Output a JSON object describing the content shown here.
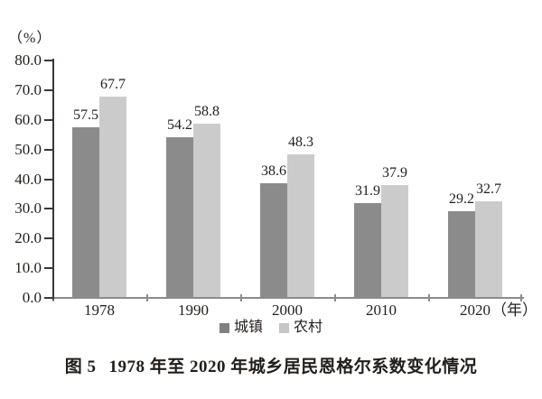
{
  "chart_data": {
    "type": "bar",
    "title": "图5 1978年至2020年城乡居民恩格尔系数变化情况",
    "categories": [
      "1978",
      "1990",
      "2000",
      "2010",
      "2020"
    ],
    "series": [
      {
        "name": "城镇",
        "color": "#8b8b8b",
        "legend_color": "#818181",
        "values": [
          57.5,
          54.2,
          38.6,
          31.9,
          29.2
        ]
      },
      {
        "name": "农村",
        "color": "#cbcbcb",
        "legend_color": "#c6c6c6",
        "values": [
          67.7,
          58.8,
          48.3,
          37.9,
          32.7
        ]
      }
    ],
    "ylabel": "（%）",
    "xlabel": "",
    "x_unit_label": "（年）",
    "ylim": [
      0,
      80
    ],
    "ytick_step": 10,
    "ytick_labels": [
      "0.0",
      "10.0",
      "20.0",
      "30.0",
      "40.0",
      "50.0",
      "60.0",
      "70.0",
      "80.0"
    ],
    "value_labels_shown": true,
    "grid": false,
    "legend_position": "bottom"
  },
  "caption": {
    "figure_number": "图 5",
    "title": "1978 年至 2020 年城乡居民恩格尔系数变化情况"
  },
  "colors": {
    "y_axis": "#3d3632",
    "x_axis": "#8c8c8c",
    "text": "#221e1c",
    "background": "#ffffff"
  }
}
